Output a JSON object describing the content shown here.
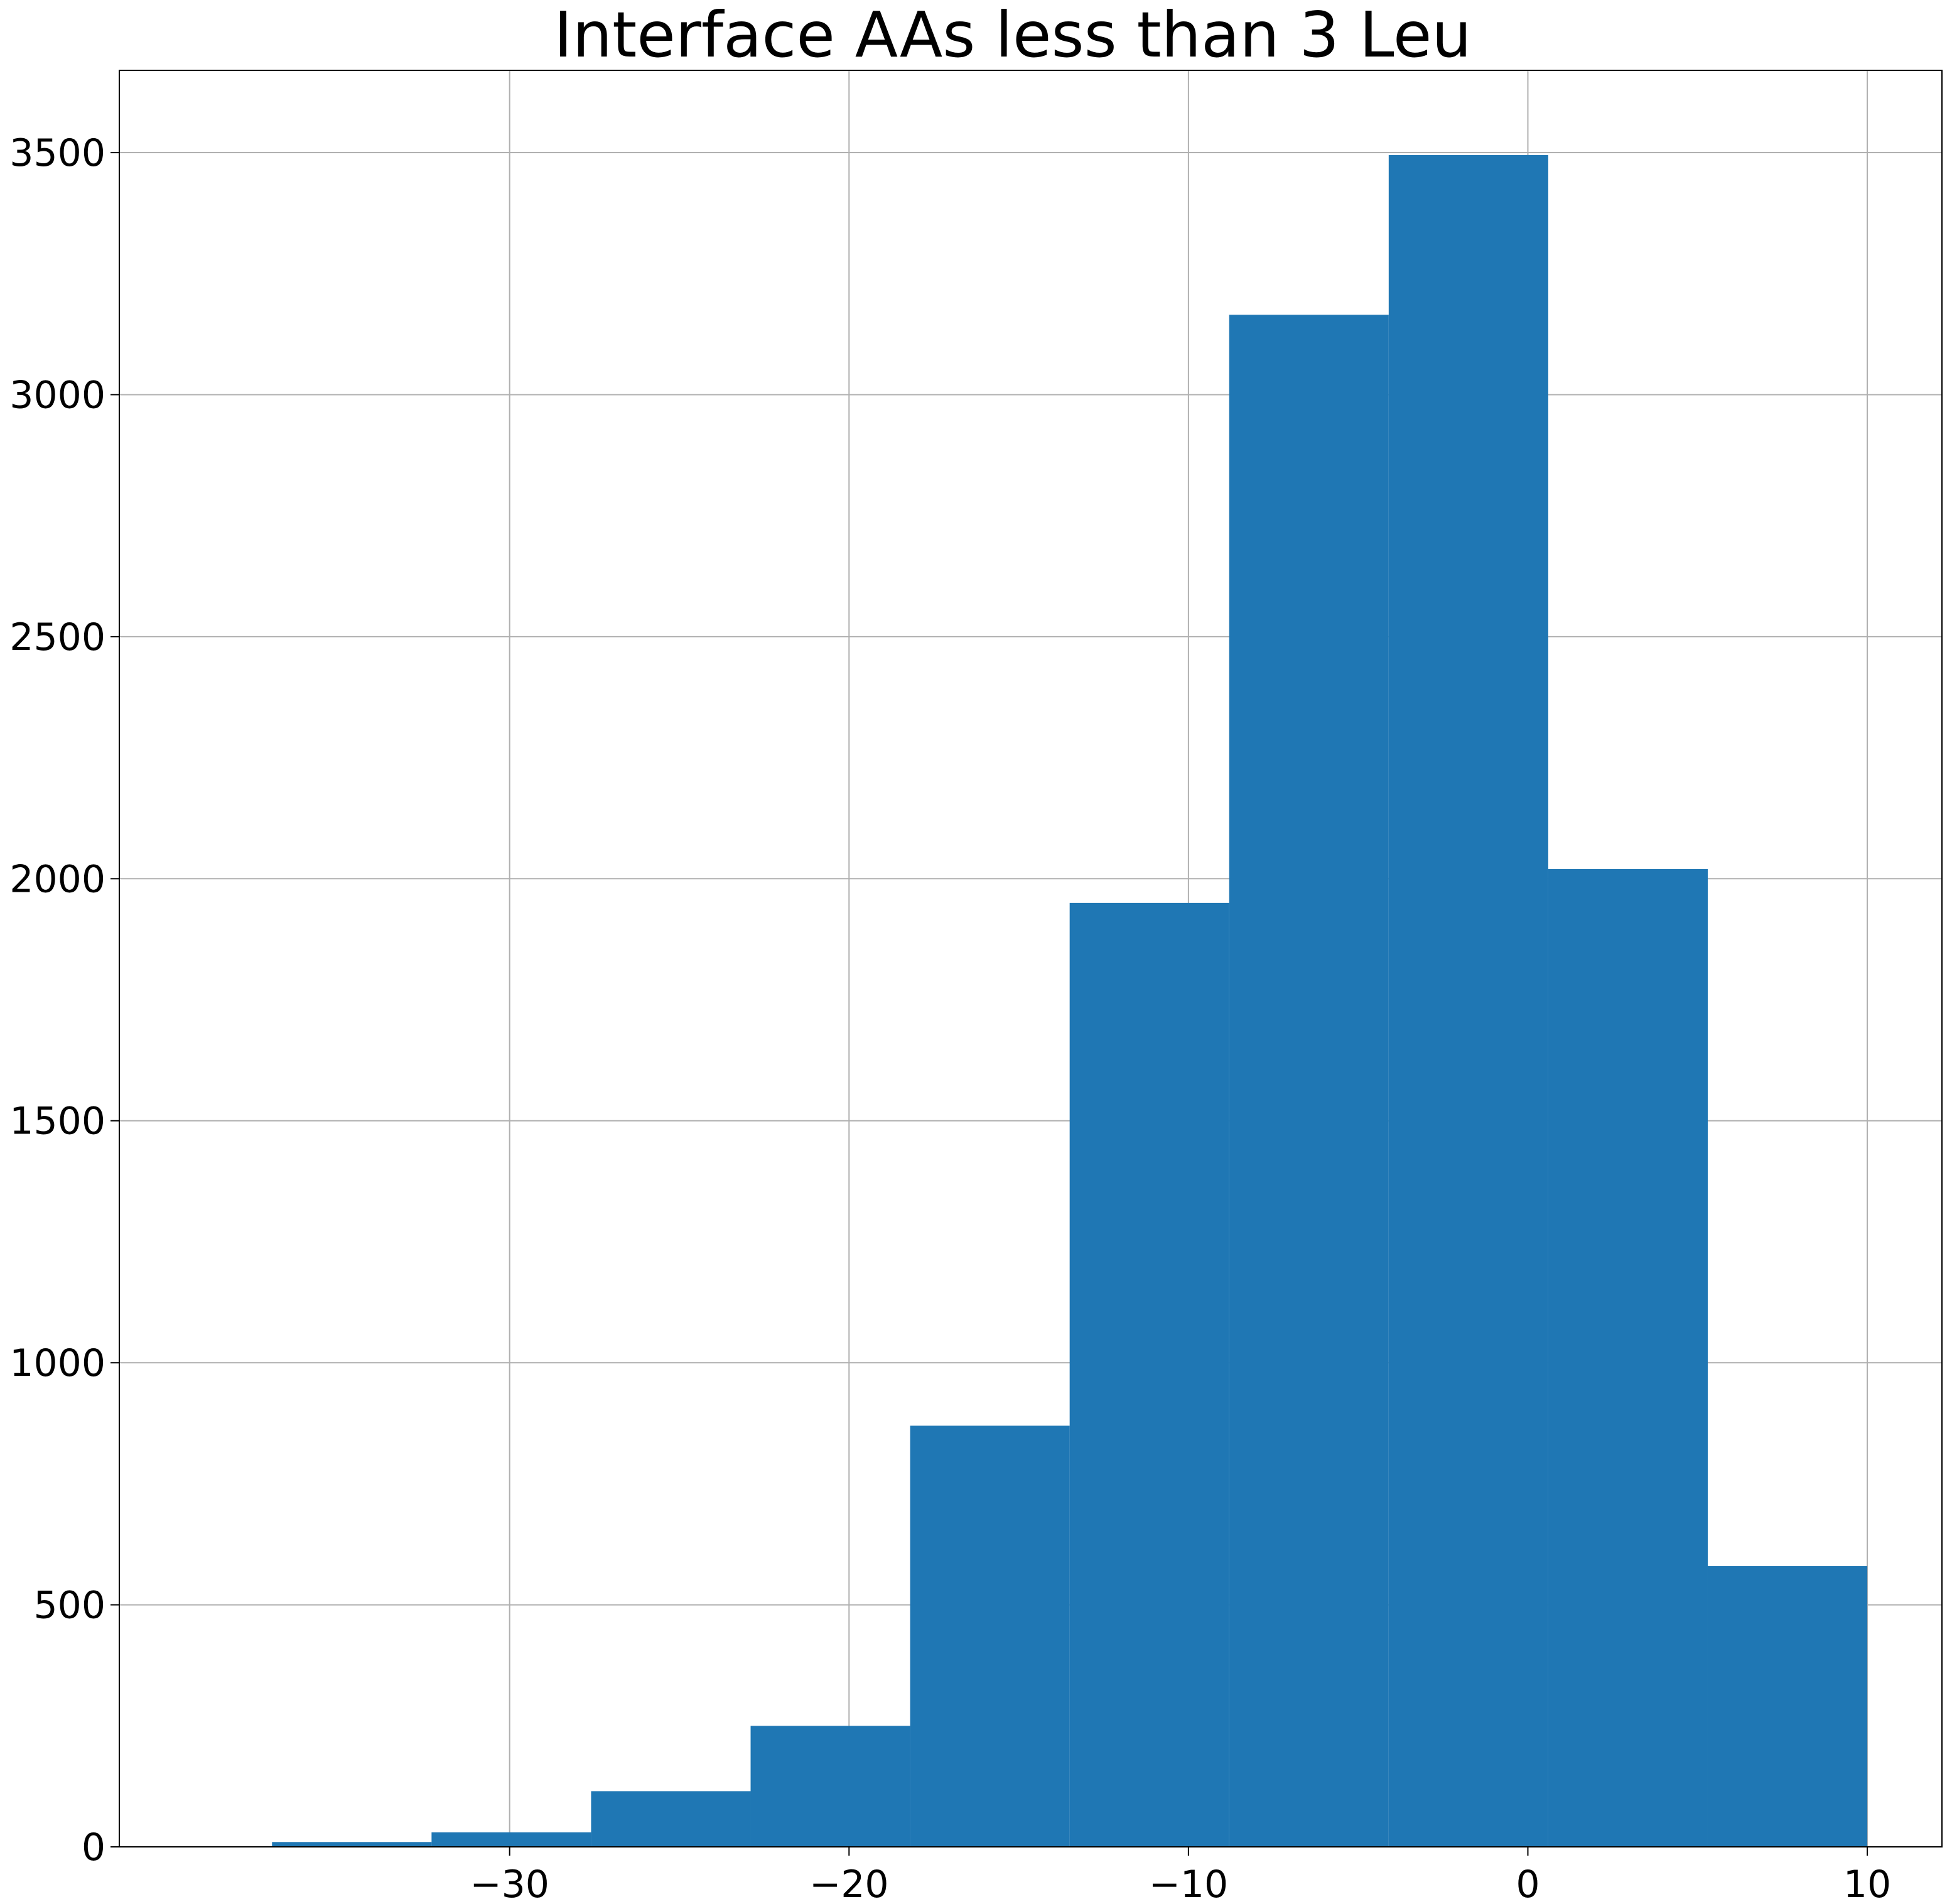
{
  "chart_data": {
    "type": "bar",
    "title": "Interface AAs less than 3 Leu",
    "xlabel": "",
    "ylabel": "",
    "histogram": true,
    "bin_edges": [
      -37.0,
      -32.3,
      -27.6,
      -22.9,
      -18.2,
      -13.5,
      -8.8,
      -4.1,
      0.6,
      5.3,
      10.0
    ],
    "values": [
      10,
      30,
      115,
      250,
      870,
      1950,
      3165,
      3495,
      2020,
      580
    ],
    "xlim": [
      -41.5,
      12.2
    ],
    "ylim": [
      0,
      3670
    ],
    "xticks": [
      -30,
      -20,
      -10,
      0,
      10
    ],
    "xtick_labels": [
      "−30",
      "−20",
      "−10",
      "0",
      "10"
    ],
    "yticks": [
      0,
      500,
      1000,
      1500,
      2000,
      2500,
      3000,
      3500
    ],
    "ytick_labels": [
      "0",
      "500",
      "1000",
      "1500",
      "2000",
      "2500",
      "3000",
      "3500"
    ],
    "grid": true,
    "legend": "none",
    "bar_color": "#1f77b4",
    "grid_color": "#b0b0b0"
  }
}
